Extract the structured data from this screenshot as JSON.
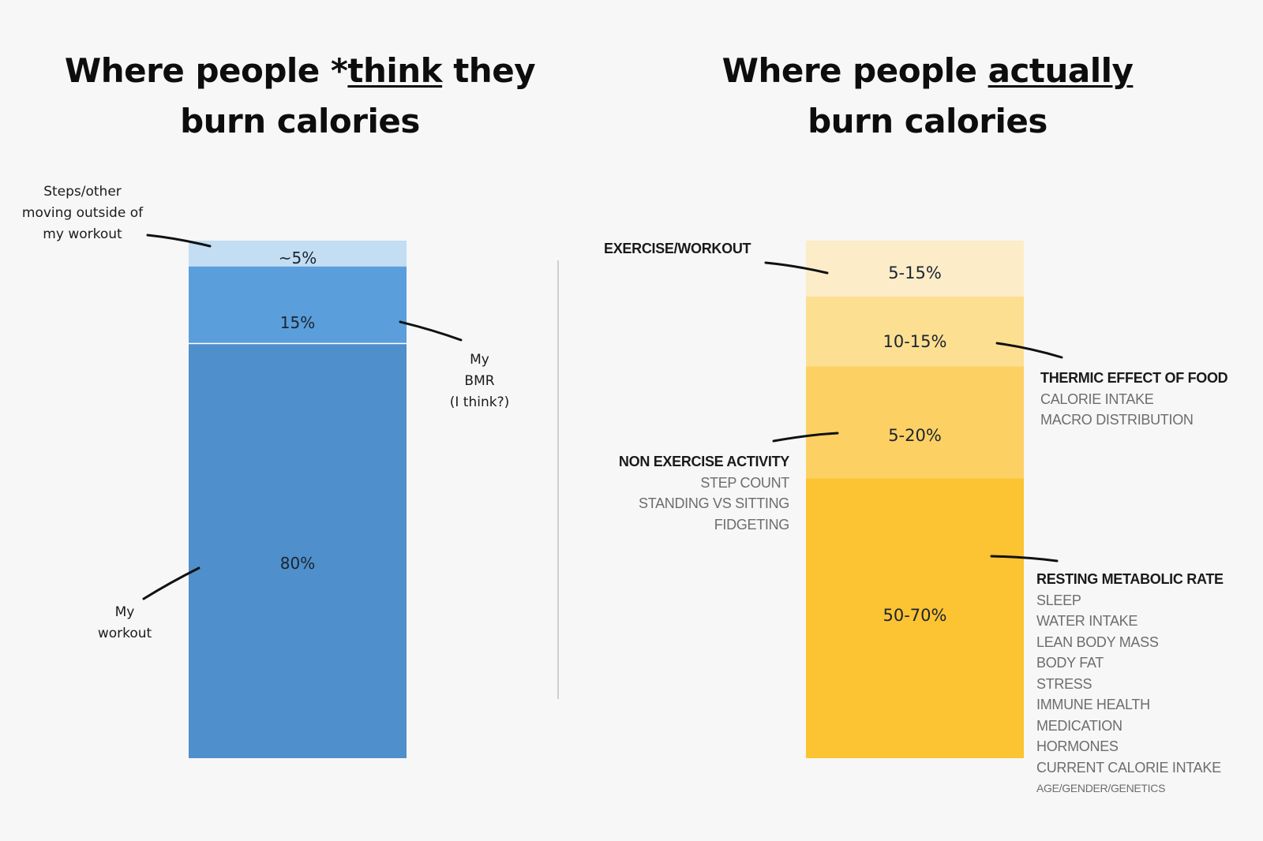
{
  "left_panel": {
    "title_before": "Where people *",
    "title_emphasis": "think",
    "title_after": " they",
    "title_line2": "burn calories",
    "annotations": {
      "steps": [
        "Steps/other",
        "moving outside of",
        "my workout"
      ],
      "bmr": [
        "My",
        "BMR",
        "(I think?)"
      ],
      "workout": [
        "My",
        "workout"
      ]
    }
  },
  "right_panel": {
    "title_before": "Where people ",
    "title_emphasis": "actually",
    "title_line2": "burn calories",
    "annotations": {
      "exercise": {
        "head": "EXERCISE/WORKOUT",
        "items": []
      },
      "tef": {
        "head": "THERMIC EFFECT OF FOOD",
        "items": [
          "CALORIE INTAKE",
          "MACRO DISTRIBUTION"
        ]
      },
      "neat": {
        "head": "NON EXERCISE ACTIVITY",
        "items": [
          "STEP COUNT",
          "STANDING VS SITTING",
          "FIDGETING"
        ]
      },
      "rmr": {
        "head": "RESTING METABOLIC RATE",
        "items": [
          "SLEEP",
          "WATER INTAKE",
          "LEAN BODY MASS",
          "BODY FAT",
          "STRESS",
          "IMMUNE HEALTH",
          "MEDICATION",
          "HORMONES",
          "CURRENT CALORIE INTAKE"
        ],
        "small_item": "AGE/GENDER/GENETICS"
      }
    }
  },
  "chart_data": [
    {
      "type": "bar",
      "stacked": true,
      "title": "Where people *think they burn calories",
      "segments": [
        {
          "name": "Steps/other moving outside of my workout",
          "label": "~5%",
          "value": 5,
          "color": "#c3ddf2"
        },
        {
          "name": "My BMR (I think?)",
          "label": "15%",
          "value": 15,
          "color": "#5a9fdb"
        },
        {
          "name": "My workout",
          "label": "80%",
          "value": 80,
          "color": "#4f8fcb"
        }
      ]
    },
    {
      "type": "bar",
      "stacked": true,
      "title": "Where people actually burn calories",
      "segments": [
        {
          "name": "EXERCISE/WORKOUT",
          "label": "5-15%",
          "value": 10,
          "color": "#fcedc8"
        },
        {
          "name": "THERMIC EFFECT OF FOOD",
          "label": "10-15%",
          "value": 12.5,
          "color": "#fcdf91"
        },
        {
          "name": "NON EXERCISE ACTIVITY",
          "label": "5-20%",
          "value": 20,
          "color": "#fdd063"
        },
        {
          "name": "RESTING METABOLIC RATE",
          "label": "50-70%",
          "value": 50,
          "color": "#fcc332"
        }
      ]
    }
  ]
}
